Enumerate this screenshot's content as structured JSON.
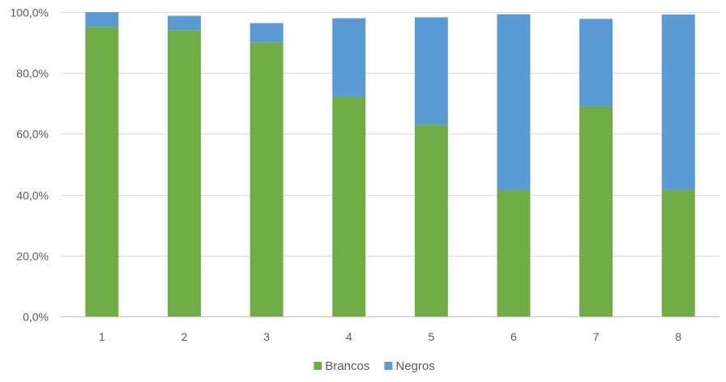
{
  "chart_data": {
    "type": "bar",
    "stacked": true,
    "categories": [
      "1",
      "2",
      "3",
      "4",
      "5",
      "6",
      "7",
      "8"
    ],
    "series": [
      {
        "name": "Brancos",
        "color": "#70AD47",
        "values": [
          95.2,
          94.1,
          90.1,
          72.2,
          63.0,
          41.5,
          69.0,
          41.6
        ]
      },
      {
        "name": "Negros",
        "color": "#5B9BD5",
        "values": [
          4.8,
          4.7,
          6.3,
          25.8,
          35.3,
          57.8,
          28.8,
          57.6
        ]
      }
    ],
    "ylim": [
      0,
      100
    ],
    "yticks": [
      "0,0%",
      "20,0%",
      "40,0%",
      "60,0%",
      "80,0%",
      "100,0%"
    ],
    "ytick_values": [
      0,
      20,
      40,
      60,
      80,
      100
    ],
    "grid": true,
    "legend_position": "bottom"
  }
}
